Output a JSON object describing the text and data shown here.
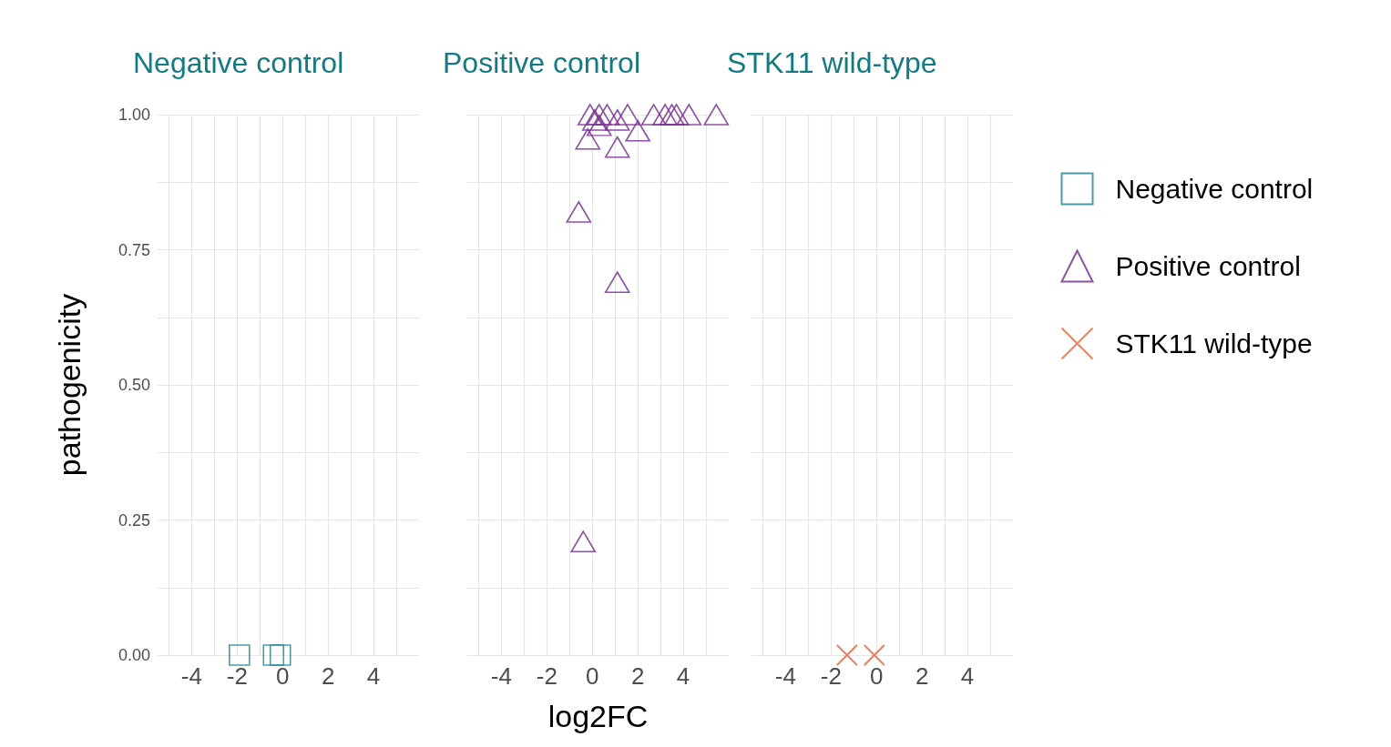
{
  "chart_data": [
    {
      "type": "scatter",
      "title": "Negative control",
      "ylabel": "pathogenicity",
      "legend": "right",
      "grid": true,
      "xlim": [
        -5.5,
        6
      ],
      "ylim": [
        0,
        1
      ],
      "xticks": [
        {
          "value": -5,
          "label": null
        },
        -4,
        {
          "value": -3,
          "label": null
        },
        -2,
        {
          "value": -1,
          "label": null
        },
        0,
        {
          "value": 1,
          "label": null
        },
        2,
        {
          "value": 3,
          "label": null
        },
        4,
        {
          "value": 5,
          "label": null
        }
      ],
      "yticks": [
        {
          "value": 0,
          "label": "0.00"
        },
        {
          "value": 0.125,
          "label": null
        },
        {
          "value": 0.25,
          "label": "0.25"
        },
        {
          "value": 0.375,
          "label": null
        },
        {
          "value": 0.5,
          "label": "0.50"
        },
        {
          "value": 0.625,
          "label": null
        },
        {
          "value": 0.75,
          "label": "0.75"
        },
        {
          "value": 0.875,
          "label": null
        },
        {
          "value": 1,
          "label": "1.00"
        }
      ],
      "series": [
        {
          "name": "Negative control",
          "color": "#2a8a96",
          "marker": "square",
          "x": [
            -1.9,
            -0.4,
            -0.1
          ],
          "values": [
            0,
            0,
            0
          ]
        }
      ]
    },
    {
      "type": "scatter",
      "title": "Positive control",
      "xlabel": "log2FC",
      "tick_labels": "x",
      "grid": true,
      "xlim": [
        -5.5,
        6
      ],
      "ylim": [
        0,
        1
      ],
      "xticks": [
        {
          "value": -5,
          "label": null
        },
        -4,
        {
          "value": -3,
          "label": null
        },
        -2,
        {
          "value": -1,
          "label": null
        },
        0,
        {
          "value": 1,
          "label": null
        },
        2,
        {
          "value": 3,
          "label": null
        },
        4,
        {
          "value": 5,
          "label": null
        }
      ],
      "series": [
        {
          "name": "Positive control",
          "color": "#7b3294",
          "marker": "triangle",
          "x": [
            -0.1,
            0.3,
            0.65,
            1.1,
            1.55,
            2.7,
            3.2,
            3.5,
            3.7,
            4.25,
            5.45,
            0.1,
            0.3,
            2.0,
            -0.2,
            1.1,
            -0.6,
            1.1,
            -0.4
          ],
          "values": [
            1.0,
            1.0,
            1.0,
            0.99,
            1.0,
            1.0,
            1.0,
            1.0,
            1.0,
            1.0,
            1.0,
            0.99,
            0.98,
            0.97,
            0.955,
            0.94,
            0.82,
            0.69,
            0.21
          ]
        }
      ]
    },
    {
      "type": "scatter",
      "title": "STK11 wild-type",
      "tick_labels": "x",
      "grid": true,
      "xlim": [
        -5.5,
        6
      ],
      "ylim": [
        0,
        1
      ],
      "xticks": [
        {
          "value": -5,
          "label": null
        },
        -4,
        {
          "value": -3,
          "label": null
        },
        -2,
        {
          "value": -1,
          "label": null
        },
        0,
        {
          "value": 1,
          "label": null
        },
        2,
        {
          "value": 3,
          "label": null
        },
        4,
        {
          "value": 5,
          "label": null
        }
      ],
      "series": [
        {
          "name": "STK11 wild-type",
          "color": "#e0704f",
          "marker": "cross",
          "x": [
            -1.3,
            -0.1
          ],
          "values": [
            0,
            0
          ]
        }
      ]
    }
  ]
}
